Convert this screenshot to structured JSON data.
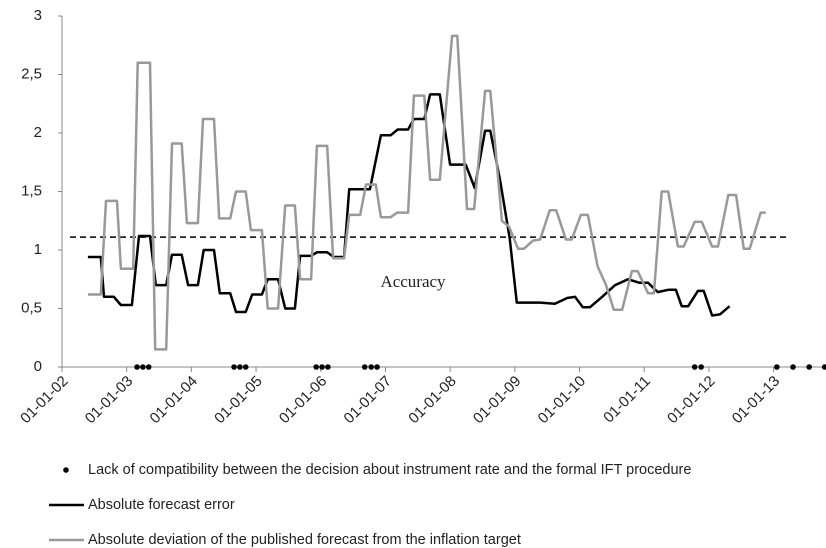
{
  "chart_data": {
    "type": "line",
    "xlim": [
      2002,
      2013.81
    ],
    "xticks": [
      {
        "value": 2002,
        "label": "01-01-02"
      },
      {
        "value": 2003,
        "label": "01-01-03"
      },
      {
        "value": 2004,
        "label": "01-01-04"
      },
      {
        "value": 2005,
        "label": "01-01-05"
      },
      {
        "value": 2006,
        "label": "01-01-06"
      },
      {
        "value": 2007,
        "label": "01-01-07"
      },
      {
        "value": 2008,
        "label": "01-01-08"
      },
      {
        "value": 2009,
        "label": "01-01-09"
      },
      {
        "value": 2010,
        "label": "01-01-10"
      },
      {
        "value": 2011,
        "label": "01-01-11"
      },
      {
        "value": 2012,
        "label": "01-01-12"
      },
      {
        "value": 2013,
        "label": "01-01-13"
      }
    ],
    "ylim": [
      0,
      3
    ],
    "yticks": [
      0,
      {
        "value": 0.5,
        "label": "0,5"
      },
      1,
      {
        "value": 1.5,
        "label": "1,5"
      },
      2,
      {
        "value": 2.5,
        "label": "2,5"
      },
      3
    ],
    "grid": false,
    "threshold": 1.11,
    "annotation": "Accuracy",
    "series": [
      {
        "name": "Lack of compatibility between the decision about instrument rate and the formal IFT procedure",
        "color": "#000000",
        "style": "dots",
        "x": [
          2003.16,
          2003.25,
          2003.34,
          2004.66,
          2004.75,
          2004.84,
          2005.93,
          2006.02,
          2006.11,
          2006.68,
          2006.78,
          2006.87,
          2011.78,
          2011.88,
          2013.05,
          2013.3,
          2013.55,
          2013.79
        ],
        "values": [
          0,
          0,
          0,
          0,
          0,
          0,
          0,
          0,
          0,
          0,
          0,
          0,
          0,
          0,
          0,
          0,
          0,
          0
        ]
      },
      {
        "name": "Absolute forecast error",
        "color": "#000000",
        "style": "line",
        "x": [
          2002.4,
          2002.6,
          2002.65,
          2002.8,
          2002.91,
          2003.08,
          2003.19,
          2003.36,
          2003.45,
          2003.61,
          2003.7,
          2003.85,
          2003.95,
          2004.1,
          2004.19,
          2004.35,
          2004.44,
          2004.6,
          2004.69,
          2004.84,
          2004.94,
          2005.09,
          2005.18,
          2005.34,
          2005.45,
          2005.6,
          2005.68,
          2005.85,
          2005.94,
          2006.1,
          2006.2,
          2006.36,
          2006.44,
          2006.76,
          2006.93,
          2007.08,
          2007.19,
          2007.35,
          2007.44,
          2007.6,
          2007.69,
          2007.84,
          2008.0,
          2008.24,
          2008.38,
          2008.54,
          2008.62,
          2008.77,
          2008.92,
          2009.03,
          2009.39,
          2009.62,
          2009.81,
          2009.93,
          2010.05,
          2010.16,
          2010.35,
          2010.55,
          2010.75,
          2010.93,
          2011.06,
          2011.21,
          2011.37,
          2011.49,
          2011.58,
          2011.68,
          2011.83,
          2011.92,
          2012.05,
          2012.17,
          2012.32
        ],
        "values": [
          0.94,
          0.94,
          0.6,
          0.6,
          0.53,
          0.53,
          1.12,
          1.12,
          0.7,
          0.7,
          0.96,
          0.96,
          0.7,
          0.7,
          1.0,
          1.0,
          0.63,
          0.63,
          0.47,
          0.47,
          0.62,
          0.62,
          0.75,
          0.75,
          0.5,
          0.5,
          0.95,
          0.95,
          0.98,
          0.98,
          0.94,
          0.94,
          1.52,
          1.52,
          1.98,
          1.98,
          2.03,
          2.03,
          2.12,
          2.12,
          2.33,
          2.33,
          1.73,
          1.73,
          1.53,
          2.02,
          2.02,
          1.6,
          1.1,
          0.55,
          0.55,
          0.54,
          0.59,
          0.6,
          0.51,
          0.51,
          0.6,
          0.7,
          0.75,
          0.72,
          0.72,
          0.64,
          0.66,
          0.66,
          0.52,
          0.52,
          0.65,
          0.65,
          0.44,
          0.45,
          0.52
        ]
      },
      {
        "name": "Absolute deviation of the published forecast from the inflation target",
        "color": "#999999",
        "style": "line",
        "x": [
          2002.4,
          2002.6,
          2002.68,
          2002.85,
          2002.91,
          2003.1,
          2003.17,
          2003.36,
          2003.44,
          2003.61,
          2003.7,
          2003.85,
          2003.93,
          2004.1,
          2004.18,
          2004.35,
          2004.43,
          2004.6,
          2004.69,
          2004.84,
          2004.92,
          2005.09,
          2005.18,
          2005.34,
          2005.45,
          2005.6,
          2005.68,
          2005.85,
          2005.94,
          2006.1,
          2006.19,
          2006.36,
          2006.44,
          2006.61,
          2006.7,
          2006.85,
          2006.93,
          2007.08,
          2007.18,
          2007.35,
          2007.44,
          2007.6,
          2007.69,
          2007.84,
          2008.03,
          2008.11,
          2008.26,
          2008.37,
          2008.54,
          2008.62,
          2008.8,
          2008.91,
          2009.05,
          2009.14,
          2009.28,
          2009.39,
          2009.54,
          2009.64,
          2009.79,
          2009.88,
          2010.02,
          2010.13,
          2010.28,
          2010.41,
          2010.53,
          2010.66,
          2010.81,
          2010.9,
          2011.06,
          2011.15,
          2011.27,
          2011.37,
          2011.52,
          2011.61,
          2011.78,
          2011.89,
          2012.05,
          2012.14,
          2012.3,
          2012.42,
          2012.54,
          2012.63,
          2012.8,
          2012.88
        ],
        "values": [
          0.62,
          0.62,
          1.42,
          1.42,
          0.84,
          0.84,
          2.6,
          2.6,
          0.15,
          0.15,
          1.91,
          1.91,
          1.23,
          1.23,
          2.12,
          2.12,
          1.27,
          1.27,
          1.5,
          1.5,
          1.17,
          1.17,
          0.5,
          0.5,
          1.38,
          1.38,
          0.75,
          0.75,
          1.89,
          1.89,
          0.93,
          0.93,
          1.3,
          1.3,
          1.56,
          1.56,
          1.28,
          1.28,
          1.32,
          1.32,
          2.32,
          2.32,
          1.6,
          1.6,
          2.83,
          2.83,
          1.35,
          1.35,
          2.36,
          2.36,
          1.25,
          1.2,
          1.01,
          1.01,
          1.08,
          1.09,
          1.34,
          1.34,
          1.09,
          1.09,
          1.3,
          1.3,
          0.86,
          0.7,
          0.49,
          0.49,
          0.82,
          0.82,
          0.63,
          0.63,
          1.5,
          1.5,
          1.03,
          1.03,
          1.24,
          1.24,
          1.03,
          1.03,
          1.47,
          1.47,
          1.01,
          1.01,
          1.32,
          1.32
        ]
      }
    ]
  }
}
